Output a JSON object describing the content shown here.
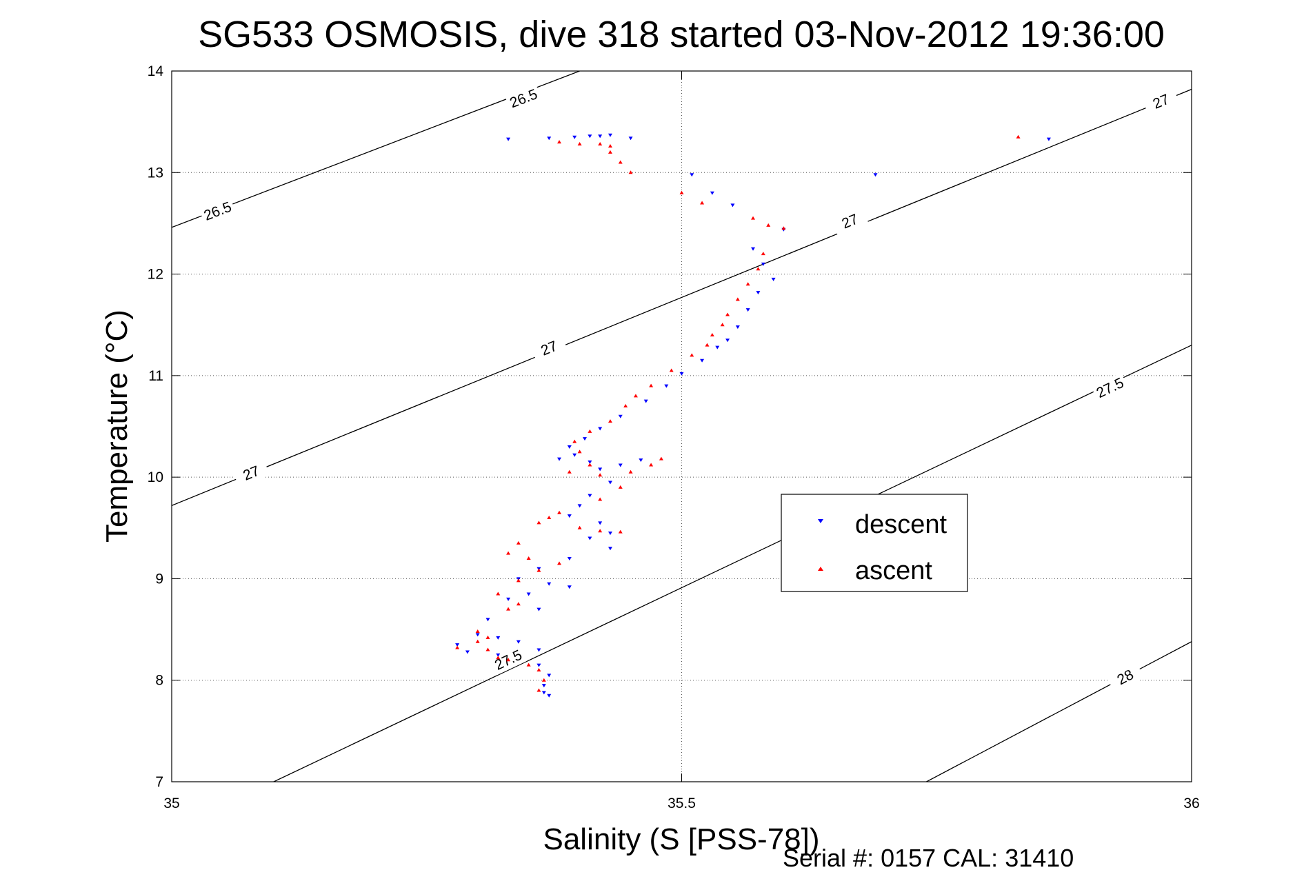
{
  "chart_data": {
    "type": "scatter",
    "title": "SG533 OSMOSIS, dive 318 started 03-Nov-2012 19:36:00",
    "xlabel": "Salinity (S [PSS-78])",
    "ylabel": "Temperature (°C)",
    "xlim": [
      35,
      36
    ],
    "ylim": [
      7,
      14
    ],
    "xticks": [
      35,
      35.5,
      36
    ],
    "xtick_labels": [
      "35",
      "35.5",
      "36"
    ],
    "yticks": [
      7,
      8,
      9,
      10,
      11,
      12,
      13,
      14
    ],
    "ytick_labels": [
      "7",
      "8",
      "9",
      "10",
      "11",
      "12",
      "13",
      "14"
    ],
    "grid": true,
    "legend_placement": "center-right",
    "colors": {
      "descent": "#0000ff",
      "ascent": "#ff0000",
      "contour": "#000000"
    },
    "contours": [
      {
        "level": "26.5",
        "points": [
          [
            35.0,
            12.46
          ],
          [
            35.4,
            14.0
          ]
        ],
        "label_positions": [
          [
            35.045,
            12.62
          ],
          [
            35.345,
            13.73
          ]
        ]
      },
      {
        "level": "27",
        "points": [
          [
            35.0,
            9.72
          ],
          [
            36.0,
            13.82
          ]
        ],
        "label_positions": [
          [
            35.078,
            10.04
          ],
          [
            35.37,
            11.27
          ],
          [
            35.665,
            12.52
          ],
          [
            35.97,
            13.7
          ]
        ]
      },
      {
        "level": "27.5",
        "points": [
          [
            35.1,
            7.0
          ],
          [
            36.0,
            11.3
          ]
        ],
        "label_positions": [
          [
            35.33,
            8.2
          ],
          [
            35.92,
            10.88
          ]
        ]
      },
      {
        "level": "28",
        "points": [
          [
            35.74,
            7.0
          ],
          [
            36.0,
            8.38
          ]
        ],
        "label_positions": [
          [
            35.935,
            8.03
          ]
        ]
      }
    ],
    "series": [
      {
        "name": "descent",
        "marker": "triangle-down",
        "points": [
          [
            35.33,
            13.33
          ],
          [
            35.37,
            13.34
          ],
          [
            35.395,
            13.35
          ],
          [
            35.41,
            13.36
          ],
          [
            35.42,
            13.36
          ],
          [
            35.43,
            13.37
          ],
          [
            35.45,
            13.34
          ],
          [
            35.86,
            13.33
          ],
          [
            35.51,
            12.98
          ],
          [
            35.69,
            12.98
          ],
          [
            35.53,
            12.8
          ],
          [
            35.55,
            12.68
          ],
          [
            35.6,
            12.44
          ],
          [
            35.57,
            12.25
          ],
          [
            35.58,
            12.1
          ],
          [
            35.59,
            11.95
          ],
          [
            35.575,
            11.82
          ],
          [
            35.565,
            11.65
          ],
          [
            35.555,
            11.48
          ],
          [
            35.545,
            11.35
          ],
          [
            35.535,
            11.28
          ],
          [
            35.52,
            11.15
          ],
          [
            35.5,
            11.02
          ],
          [
            35.485,
            10.9
          ],
          [
            35.465,
            10.75
          ],
          [
            35.44,
            10.6
          ],
          [
            35.42,
            10.48
          ],
          [
            35.405,
            10.38
          ],
          [
            35.39,
            10.3
          ],
          [
            35.395,
            10.22
          ],
          [
            35.38,
            10.18
          ],
          [
            35.41,
            10.15
          ],
          [
            35.42,
            10.08
          ],
          [
            35.44,
            10.12
          ],
          [
            35.46,
            10.17
          ],
          [
            35.43,
            9.95
          ],
          [
            35.41,
            9.82
          ],
          [
            35.4,
            9.72
          ],
          [
            35.39,
            9.62
          ],
          [
            35.42,
            9.55
          ],
          [
            35.43,
            9.45
          ],
          [
            35.41,
            9.4
          ],
          [
            35.43,
            9.3
          ],
          [
            35.39,
            9.2
          ],
          [
            35.36,
            9.1
          ],
          [
            35.34,
            9.0
          ],
          [
            35.37,
            8.95
          ],
          [
            35.39,
            8.92
          ],
          [
            35.35,
            8.85
          ],
          [
            35.33,
            8.8
          ],
          [
            35.36,
            8.7
          ],
          [
            35.31,
            8.6
          ],
          [
            35.3,
            8.45
          ],
          [
            35.32,
            8.42
          ],
          [
            35.34,
            8.38
          ],
          [
            35.36,
            8.3
          ],
          [
            35.28,
            8.35
          ],
          [
            35.29,
            8.28
          ],
          [
            35.32,
            8.25
          ],
          [
            35.36,
            8.15
          ],
          [
            35.37,
            8.05
          ],
          [
            35.365,
            7.95
          ],
          [
            35.365,
            7.88
          ],
          [
            35.37,
            7.85
          ]
        ]
      },
      {
        "name": "ascent",
        "marker": "triangle-up",
        "points": [
          [
            35.38,
            13.3
          ],
          [
            35.4,
            13.28
          ],
          [
            35.42,
            13.28
          ],
          [
            35.43,
            13.26
          ],
          [
            35.43,
            13.2
          ],
          [
            35.44,
            13.1
          ],
          [
            35.45,
            13.0
          ],
          [
            35.83,
            13.35
          ],
          [
            35.5,
            12.8
          ],
          [
            35.52,
            12.7
          ],
          [
            35.57,
            12.55
          ],
          [
            35.585,
            12.48
          ],
          [
            35.6,
            12.45
          ],
          [
            35.58,
            12.2
          ],
          [
            35.575,
            12.05
          ],
          [
            35.565,
            11.9
          ],
          [
            35.555,
            11.75
          ],
          [
            35.545,
            11.6
          ],
          [
            35.54,
            11.5
          ],
          [
            35.53,
            11.4
          ],
          [
            35.525,
            11.3
          ],
          [
            35.51,
            11.2
          ],
          [
            35.49,
            11.05
          ],
          [
            35.47,
            10.9
          ],
          [
            35.455,
            10.8
          ],
          [
            35.445,
            10.7
          ],
          [
            35.43,
            10.55
          ],
          [
            35.41,
            10.45
          ],
          [
            35.395,
            10.35
          ],
          [
            35.4,
            10.25
          ],
          [
            35.41,
            10.12
          ],
          [
            35.39,
            10.05
          ],
          [
            35.42,
            10.02
          ],
          [
            35.45,
            10.05
          ],
          [
            35.47,
            10.12
          ],
          [
            35.48,
            10.18
          ],
          [
            35.44,
            9.9
          ],
          [
            35.42,
            9.78
          ],
          [
            35.38,
            9.65
          ],
          [
            35.37,
            9.6
          ],
          [
            35.36,
            9.55
          ],
          [
            35.4,
            9.5
          ],
          [
            35.42,
            9.47
          ],
          [
            35.44,
            9.46
          ],
          [
            35.34,
            9.35
          ],
          [
            35.33,
            9.25
          ],
          [
            35.35,
            9.2
          ],
          [
            35.38,
            9.15
          ],
          [
            35.36,
            9.08
          ],
          [
            35.34,
            8.98
          ],
          [
            35.32,
            8.85
          ],
          [
            35.34,
            8.75
          ],
          [
            35.33,
            8.7
          ],
          [
            35.3,
            8.48
          ],
          [
            35.31,
            8.42
          ],
          [
            35.3,
            8.38
          ],
          [
            35.28,
            8.32
          ],
          [
            35.31,
            8.3
          ],
          [
            35.32,
            8.22
          ],
          [
            35.33,
            8.2
          ],
          [
            35.35,
            8.15
          ],
          [
            35.36,
            8.1
          ],
          [
            35.365,
            8.0
          ],
          [
            35.36,
            7.9
          ]
        ]
      }
    ]
  },
  "footer": {
    "serial": "Serial #: 0157  CAL: 31410"
  }
}
